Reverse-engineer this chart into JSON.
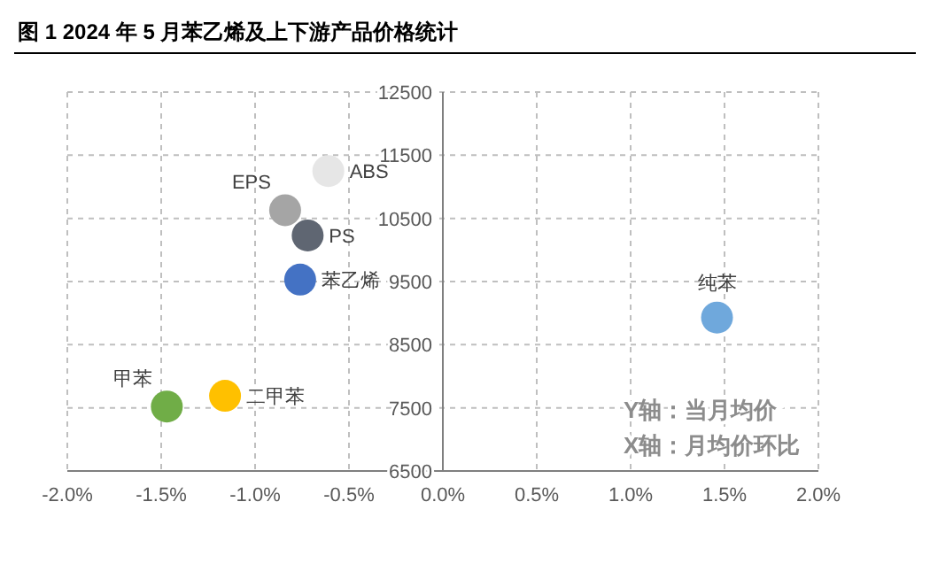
{
  "chart_data": {
    "type": "scatter",
    "title": "图 1 2024 年 5 月苯乙烯及上下游产品价格统计",
    "xlim": [
      -2,
      2
    ],
    "xticks": [
      {
        "value": -2,
        "label": "-2.0%"
      },
      {
        "value": -1.5,
        "label": "-1.5%"
      },
      {
        "value": -1,
        "label": "-1.0%"
      },
      {
        "value": -0.5,
        "label": "-0.5%"
      },
      {
        "value": 0,
        "label": "0.0%"
      },
      {
        "value": 0.5,
        "label": "0.5%"
      },
      {
        "value": 1,
        "label": "1.0%"
      },
      {
        "value": 1.5,
        "label": "1.5%"
      },
      {
        "value": 2,
        "label": "2.0%"
      }
    ],
    "ylim": [
      6500,
      12500
    ],
    "yticks": [
      6500,
      7500,
      8500,
      9500,
      10500,
      11500,
      12500
    ],
    "grid": true,
    "marker": "circle",
    "series": [
      {
        "name": "ABS",
        "color": "#e6e6e6",
        "x": [
          -0.61
        ],
        "values": [
          11250
        ]
      },
      {
        "name": "EPS",
        "color": "#a5a5a5",
        "x": [
          -0.84
        ],
        "values": [
          10630
        ]
      },
      {
        "name": "PS",
        "color": "#5f6672",
        "x": [
          -0.72
        ],
        "values": [
          10230
        ]
      },
      {
        "name": "苯乙烯",
        "color": "#4472c4",
        "x": [
          -0.76
        ],
        "values": [
          9530
        ]
      },
      {
        "name": "纯苯",
        "color": "#6fa8dc",
        "x": [
          1.46
        ],
        "values": [
          8930
        ]
      },
      {
        "name": "甲苯",
        "color": "#70ad47",
        "x": [
          -1.47
        ],
        "values": [
          7520
        ]
      },
      {
        "name": "二甲苯",
        "color": "#ffc000",
        "x": [
          -1.16
        ],
        "values": [
          7690
        ]
      }
    ],
    "annotations": [
      "Y轴：当月均价",
      "X轴：月均价环比"
    ]
  }
}
